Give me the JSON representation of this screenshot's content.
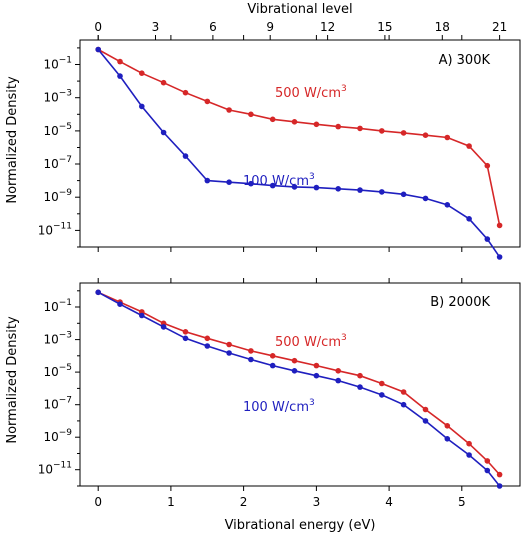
{
  "figure": {
    "top_axis_label": "Vibrational level",
    "bottom_axis_label": "Vibrational energy (eV)",
    "y_axis_label": "Normalized Density"
  },
  "colors": {
    "series_500": "#d62728",
    "series_100": "#1f1fbf"
  },
  "chart_data": [
    {
      "type": "line",
      "panel_label": "A) 300K",
      "xlabel": "Vibrational energy (eV)",
      "ylabel": "Normalized Density",
      "top_xlabel": "Vibrational level",
      "top_ticks": [
        0,
        3,
        6,
        9,
        12,
        15,
        18,
        21
      ],
      "x_ticks": [
        0,
        1,
        2,
        3,
        4,
        5
      ],
      "xlim": [
        -0.25,
        5.8
      ],
      "y_scale": "log",
      "ylim": [
        1e-12,
        3
      ],
      "y_ticks": [
        -1,
        -3,
        -5,
        -7,
        -9,
        -11
      ],
      "x": [
        0.0,
        0.3,
        0.6,
        0.9,
        1.2,
        1.5,
        1.8,
        2.1,
        2.4,
        2.7,
        3.0,
        3.3,
        3.6,
        3.9,
        4.2,
        4.5,
        4.8,
        5.1,
        5.35,
        5.52
      ],
      "series": [
        {
          "name": "500 W/cm³",
          "color": "#d62728",
          "values": [
            0.8,
            0.15,
            0.03,
            0.008,
            0.002,
            0.0006,
            0.00018,
            0.0001,
            5e-05,
            3.5e-05,
            2.5e-05,
            1.8e-05,
            1.4e-05,
            1e-05,
            7.5e-06,
            5.5e-06,
            4e-06,
            1.2e-06,
            8e-08,
            2e-11
          ]
        },
        {
          "name": "100 W/cm³",
          "color": "#1f1fbf",
          "values": [
            0.8,
            0.02,
            0.0003,
            8e-06,
            3e-07,
            1e-08,
            8e-09,
            6.5e-09,
            5e-09,
            4.2e-09,
            3.8e-09,
            3.2e-09,
            2.7e-09,
            2.1e-09,
            1.5e-09,
            8.5e-10,
            3.5e-10,
            5e-11,
            3e-12,
            2.5e-13
          ]
        }
      ]
    },
    {
      "type": "line",
      "panel_label": "B) 2000K",
      "xlabel": "Vibrational energy (eV)",
      "ylabel": "Normalized Density",
      "x_ticks": [
        0,
        1,
        2,
        3,
        4,
        5
      ],
      "xlim": [
        -0.25,
        5.8
      ],
      "y_scale": "log",
      "ylim": [
        1e-12,
        3
      ],
      "y_ticks": [
        -1,
        -3,
        -5,
        -7,
        -9,
        -11
      ],
      "x": [
        0.0,
        0.3,
        0.6,
        0.9,
        1.2,
        1.5,
        1.8,
        2.1,
        2.4,
        2.7,
        3.0,
        3.3,
        3.6,
        3.9,
        4.2,
        4.5,
        4.8,
        5.1,
        5.35,
        5.52
      ],
      "series": [
        {
          "name": "500 W/cm³",
          "color": "#d62728",
          "values": [
            0.8,
            0.2,
            0.05,
            0.01,
            0.003,
            0.0012,
            0.0005,
            0.0002,
            0.0001,
            5e-05,
            2.5e-05,
            1.2e-05,
            6e-06,
            2e-06,
            6e-07,
            5e-08,
            5e-09,
            4e-10,
            3.5e-11,
            5e-12
          ]
        },
        {
          "name": "100 W/cm³",
          "color": "#1f1fbf",
          "values": [
            0.8,
            0.15,
            0.03,
            0.006,
            0.0012,
            0.0004,
            0.00015,
            6e-05,
            2.5e-05,
            1.2e-05,
            6e-06,
            3e-06,
            1.2e-06,
            4e-07,
            1e-07,
            1e-08,
            8e-10,
            8e-11,
            9e-12,
            1e-12
          ]
        }
      ]
    }
  ]
}
